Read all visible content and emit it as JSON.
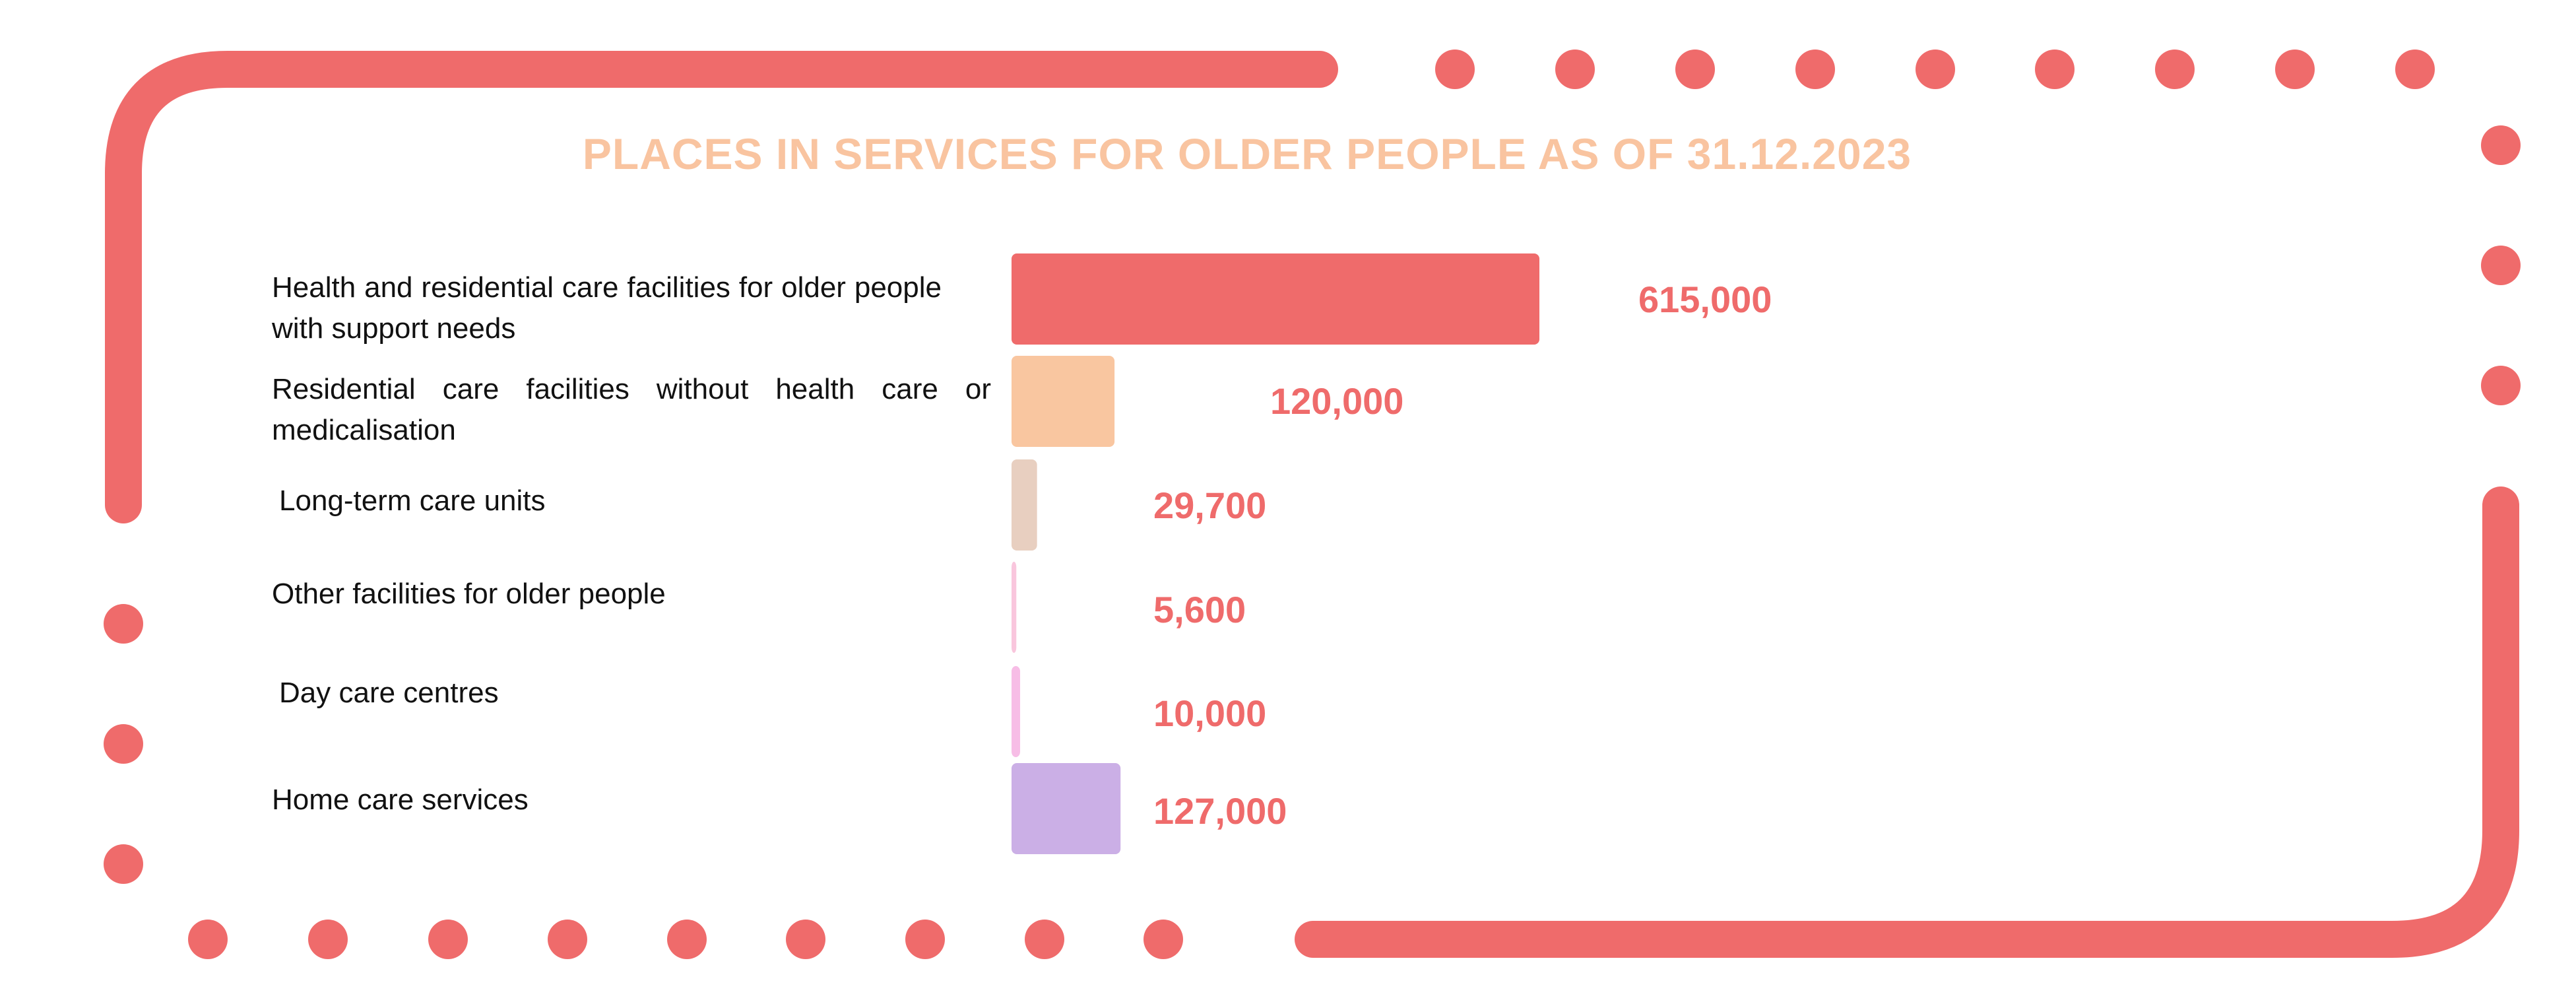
{
  "chart_data": {
    "type": "bar",
    "orientation": "horizontal",
    "title": "PLACES IN SERVICES FOR OLDER PEOPLE AS OF 31.12.2023",
    "categories": [
      "Health and residential care facilities for older people with support needs",
      "Residential care facilities without health care or medicalisation",
      "Long-term care units",
      "Other facilities for older people",
      "Day care centres",
      "Home care services"
    ],
    "values": [
      615000,
      120000,
      29700,
      5600,
      10000,
      127000
    ],
    "value_labels": [
      "615,000",
      "120,000",
      "29,700",
      "5,600",
      "10,000",
      "127,000"
    ],
    "bar_colors": [
      "#ef6b6b",
      "#f9c6a0",
      "#e8cfc0",
      "#f9c6dd",
      "#f7bde6",
      "#cbafe6"
    ],
    "label_color": "#ef6b6b",
    "grid": false,
    "legend": "none"
  },
  "colors": {
    "title": "#f9c4a0",
    "frame": "#ef6b6b"
  }
}
